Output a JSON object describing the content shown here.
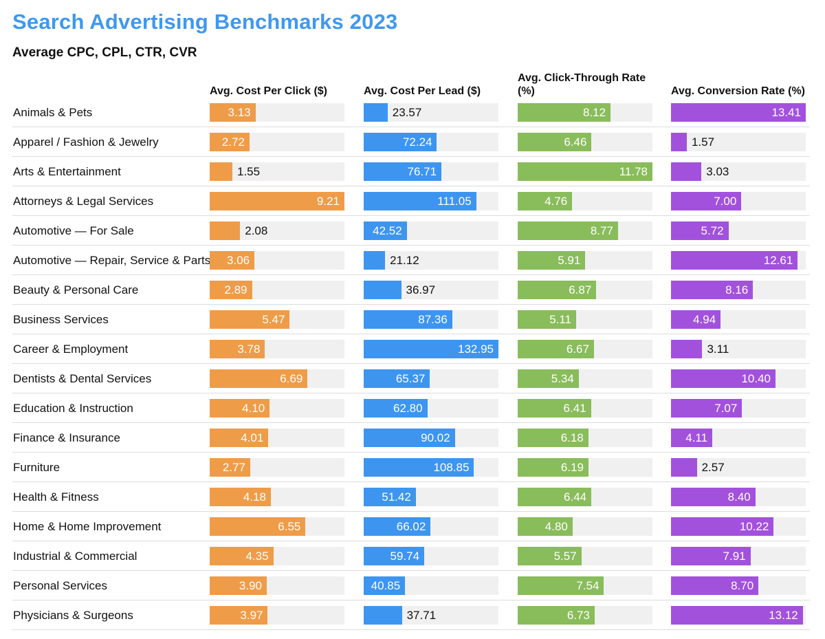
{
  "title": "Search Advertising Benchmarks 2023",
  "subtitle": "Average CPC, CPL, CTR, CVR",
  "chart_data": {
    "type": "table",
    "columns": [
      {
        "key": "cpc",
        "label": "Avg. Cost Per Click ($)",
        "color": "#ef9c48",
        "max": 9.21
      },
      {
        "key": "cpl",
        "label": "Avg. Cost Per Lead ($)",
        "color": "#3d95f0",
        "max": 132.95
      },
      {
        "key": "ctr",
        "label": "Avg. Click-Through Rate (%)",
        "color": "#89bc5b",
        "max": 11.78
      },
      {
        "key": "cvr",
        "label": "Avg. Conversion Rate (%)",
        "color": "#a251dd",
        "max": 13.41
      }
    ],
    "rows": [
      {
        "category": "Animals & Pets",
        "cpc": "3.13",
        "cpl": "23.57",
        "ctr": "8.12",
        "cvr": "13.41"
      },
      {
        "category": "Apparel / Fashion & Jewelry",
        "cpc": "2.72",
        "cpl": "72.24",
        "ctr": "6.46",
        "cvr": "1.57"
      },
      {
        "category": "Arts & Entertainment",
        "cpc": "1.55",
        "cpl": "76.71",
        "ctr": "11.78",
        "cvr": "3.03"
      },
      {
        "category": "Attorneys & Legal Services",
        "cpc": "9.21",
        "cpl": "111.05",
        "ctr": "4.76",
        "cvr": "7.00"
      },
      {
        "category": "Automotive — For Sale",
        "cpc": "2.08",
        "cpl": "42.52",
        "ctr": "8.77",
        "cvr": "5.72"
      },
      {
        "category": "Automotive — Repair, Service & Parts",
        "cpc": "3.06",
        "cpl": "21.12",
        "ctr": "5.91",
        "cvr": "12.61"
      },
      {
        "category": "Beauty & Personal Care",
        "cpc": "2.89",
        "cpl": "36.97",
        "ctr": "6.87",
        "cvr": "8.16"
      },
      {
        "category": "Business Services",
        "cpc": "5.47",
        "cpl": "87.36",
        "ctr": "5.11",
        "cvr": "4.94"
      },
      {
        "category": "Career & Employment",
        "cpc": "3.78",
        "cpl": "132.95",
        "ctr": "6.67",
        "cvr": "3.11"
      },
      {
        "category": "Dentists & Dental Services",
        "cpc": "6.69",
        "cpl": "65.37",
        "ctr": "5.34",
        "cvr": "10.40"
      },
      {
        "category": "Education & Instruction",
        "cpc": "4.10",
        "cpl": "62.80",
        "ctr": "6.41",
        "cvr": "7.07"
      },
      {
        "category": "Finance & Insurance",
        "cpc": "4.01",
        "cpl": "90.02",
        "ctr": "6.18",
        "cvr": "4.11"
      },
      {
        "category": "Furniture",
        "cpc": "2.77",
        "cpl": "108.85",
        "ctr": "6.19",
        "cvr": "2.57"
      },
      {
        "category": "Health & Fitness",
        "cpc": "4.18",
        "cpl": "51.42",
        "ctr": "6.44",
        "cvr": "8.40"
      },
      {
        "category": "Home & Home Improvement",
        "cpc": "6.55",
        "cpl": "66.02",
        "ctr": "4.80",
        "cvr": "10.22"
      },
      {
        "category": "Industrial & Commercial",
        "cpc": "4.35",
        "cpl": "59.74",
        "ctr": "5.57",
        "cvr": "7.91"
      },
      {
        "category": "Personal Services",
        "cpc": "3.90",
        "cpl": "40.85",
        "ctr": "7.54",
        "cvr": "8.70"
      },
      {
        "category": "Physicians & Surgeons",
        "cpc": "3.97",
        "cpl": "37.71",
        "ctr": "6.73",
        "cvr": "13.12"
      }
    ]
  }
}
